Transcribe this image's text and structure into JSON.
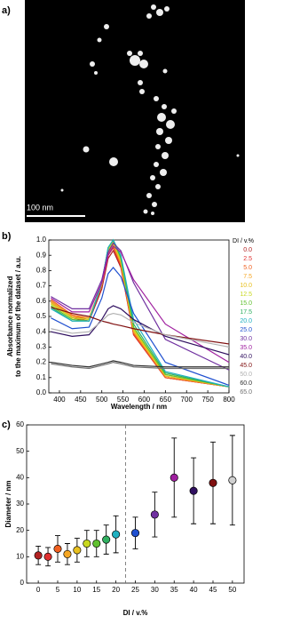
{
  "image": {
    "label": "a)",
    "scale_bar": "100 nm"
  },
  "chart_data": [
    {
      "type": "line",
      "panel_label": "b)",
      "xlabel": "Wavelength / nm",
      "ylabel": [
        "Absorbance normalized",
        "to the maximum of the dataset / a.u."
      ],
      "legend_title": "DI / v.%",
      "x": [
        380,
        430,
        470,
        500,
        515,
        527,
        545,
        575,
        650,
        800
      ],
      "xlim": [
        375,
        800
      ],
      "xticks": [
        400,
        450,
        500,
        550,
        600,
        650,
        700,
        750,
        800
      ],
      "ylim": [
        0,
        1
      ],
      "yticks": [
        {
          "value": 0,
          "label": "0.0"
        },
        0.1,
        0.2,
        0.3,
        0.4,
        0.5,
        0.6,
        0.7,
        0.8,
        0.9,
        {
          "value": 1,
          "label": "1.0"
        }
      ],
      "series": [
        {
          "name": "0.0",
          "color": "#b22222",
          "values": [
            0.59,
            0.49,
            0.47,
            0.68,
            0.88,
            0.93,
            0.82,
            0.38,
            0.1,
            0.04
          ]
        },
        {
          "name": "2.5",
          "color": "#e03030",
          "values": [
            0.6,
            0.5,
            0.48,
            0.7,
            0.9,
            0.95,
            0.83,
            0.38,
            0.1,
            0.04
          ]
        },
        {
          "name": "5.0",
          "color": "#f06020",
          "values": [
            0.61,
            0.51,
            0.49,
            0.71,
            0.91,
            0.96,
            0.84,
            0.39,
            0.1,
            0.04
          ]
        },
        {
          "name": "7.5",
          "color": "#f5a623",
          "values": [
            0.6,
            0.5,
            0.49,
            0.71,
            0.92,
            0.97,
            0.85,
            0.4,
            0.11,
            0.04
          ]
        },
        {
          "name": "10.0",
          "color": "#e8c020",
          "values": [
            0.59,
            0.49,
            0.48,
            0.71,
            0.93,
            0.98,
            0.86,
            0.41,
            0.11,
            0.04
          ]
        },
        {
          "name": "12.5",
          "color": "#c8d820",
          "values": [
            0.58,
            0.49,
            0.48,
            0.72,
            0.94,
            0.99,
            0.87,
            0.42,
            0.12,
            0.04
          ]
        },
        {
          "name": "15.0",
          "color": "#60c030",
          "values": [
            0.57,
            0.48,
            0.47,
            0.72,
            0.95,
            1.0,
            0.88,
            0.43,
            0.12,
            0.04
          ]
        },
        {
          "name": "17.5",
          "color": "#30b060",
          "values": [
            0.56,
            0.47,
            0.47,
            0.72,
            0.95,
            1.0,
            0.89,
            0.45,
            0.13,
            0.04
          ]
        },
        {
          "name": "20.0",
          "color": "#20b0c0",
          "values": [
            0.55,
            0.47,
            0.47,
            0.72,
            0.95,
            1.0,
            0.9,
            0.48,
            0.14,
            0.04
          ]
        },
        {
          "name": "25.0",
          "color": "#2050d0",
          "values": [
            0.49,
            0.42,
            0.43,
            0.62,
            0.78,
            0.82,
            0.76,
            0.52,
            0.2,
            0.05
          ]
        },
        {
          "name": "30.0",
          "color": "#7030a0",
          "values": [
            0.63,
            0.55,
            0.55,
            0.74,
            0.92,
            0.98,
            0.93,
            0.72,
            0.35,
            0.15
          ]
        },
        {
          "name": "35.0",
          "color": "#a020a0",
          "values": [
            0.62,
            0.53,
            0.53,
            0.72,
            0.9,
            0.96,
            0.92,
            0.74,
            0.45,
            0.2
          ]
        },
        {
          "name": "40.0",
          "color": "#301060",
          "values": [
            0.4,
            0.37,
            0.38,
            0.48,
            0.55,
            0.57,
            0.55,
            0.48,
            0.37,
            0.25
          ]
        },
        {
          "name": "45.0",
          "color": "#801010",
          "values": [
            0.56,
            0.52,
            0.5,
            0.47,
            0.46,
            0.45,
            0.44,
            0.42,
            0.38,
            0.32
          ]
        },
        {
          "name": "50.0",
          "color": "#b0b0b0",
          "values": [
            0.42,
            0.39,
            0.4,
            0.47,
            0.51,
            0.52,
            0.51,
            0.46,
            0.38,
            0.3
          ]
        },
        {
          "name": "60.0",
          "color": "#303030",
          "values": [
            0.2,
            0.18,
            0.17,
            0.19,
            0.2,
            0.21,
            0.2,
            0.18,
            0.17,
            0.17
          ]
        },
        {
          "name": "65.0",
          "color": "#707070",
          "values": [
            0.19,
            0.17,
            0.16,
            0.18,
            0.19,
            0.2,
            0.19,
            0.17,
            0.16,
            0.16
          ]
        }
      ]
    },
    {
      "type": "scatter",
      "panel_label": "c)",
      "xlabel": "DI / v.%",
      "ylabel": "Diameter / nm",
      "x": [
        0,
        2.5,
        5,
        7.5,
        10,
        12.5,
        15,
        17.5,
        20,
        25,
        30,
        35,
        40,
        45,
        50
      ],
      "values": [
        10.5,
        10,
        13,
        11,
        12.5,
        15,
        15,
        16.5,
        18.5,
        19,
        26,
        40,
        35,
        38,
        39
      ],
      "errors": [
        3.5,
        3.5,
        5,
        4,
        4.5,
        5,
        5,
        5.5,
        7,
        6,
        8.5,
        15,
        12.5,
        15.5,
        17
      ],
      "colors": [
        "#b22222",
        "#e03030",
        "#f06020",
        "#f5a623",
        "#e8c020",
        "#c8d820",
        "#60c030",
        "#30b060",
        "#20b0c0",
        "#2050d0",
        "#7030a0",
        "#a020a0",
        "#301060",
        "#801010",
        "#d0d0d0"
      ],
      "divider_x": 22.5,
      "xlim": [
        -3,
        53
      ],
      "xticks": [
        0,
        5,
        10,
        15,
        20,
        25,
        30,
        35,
        40,
        45,
        50
      ],
      "ylim": [
        0,
        60
      ],
      "yticks": [
        0,
        10,
        20,
        30,
        40,
        50,
        60
      ]
    }
  ]
}
